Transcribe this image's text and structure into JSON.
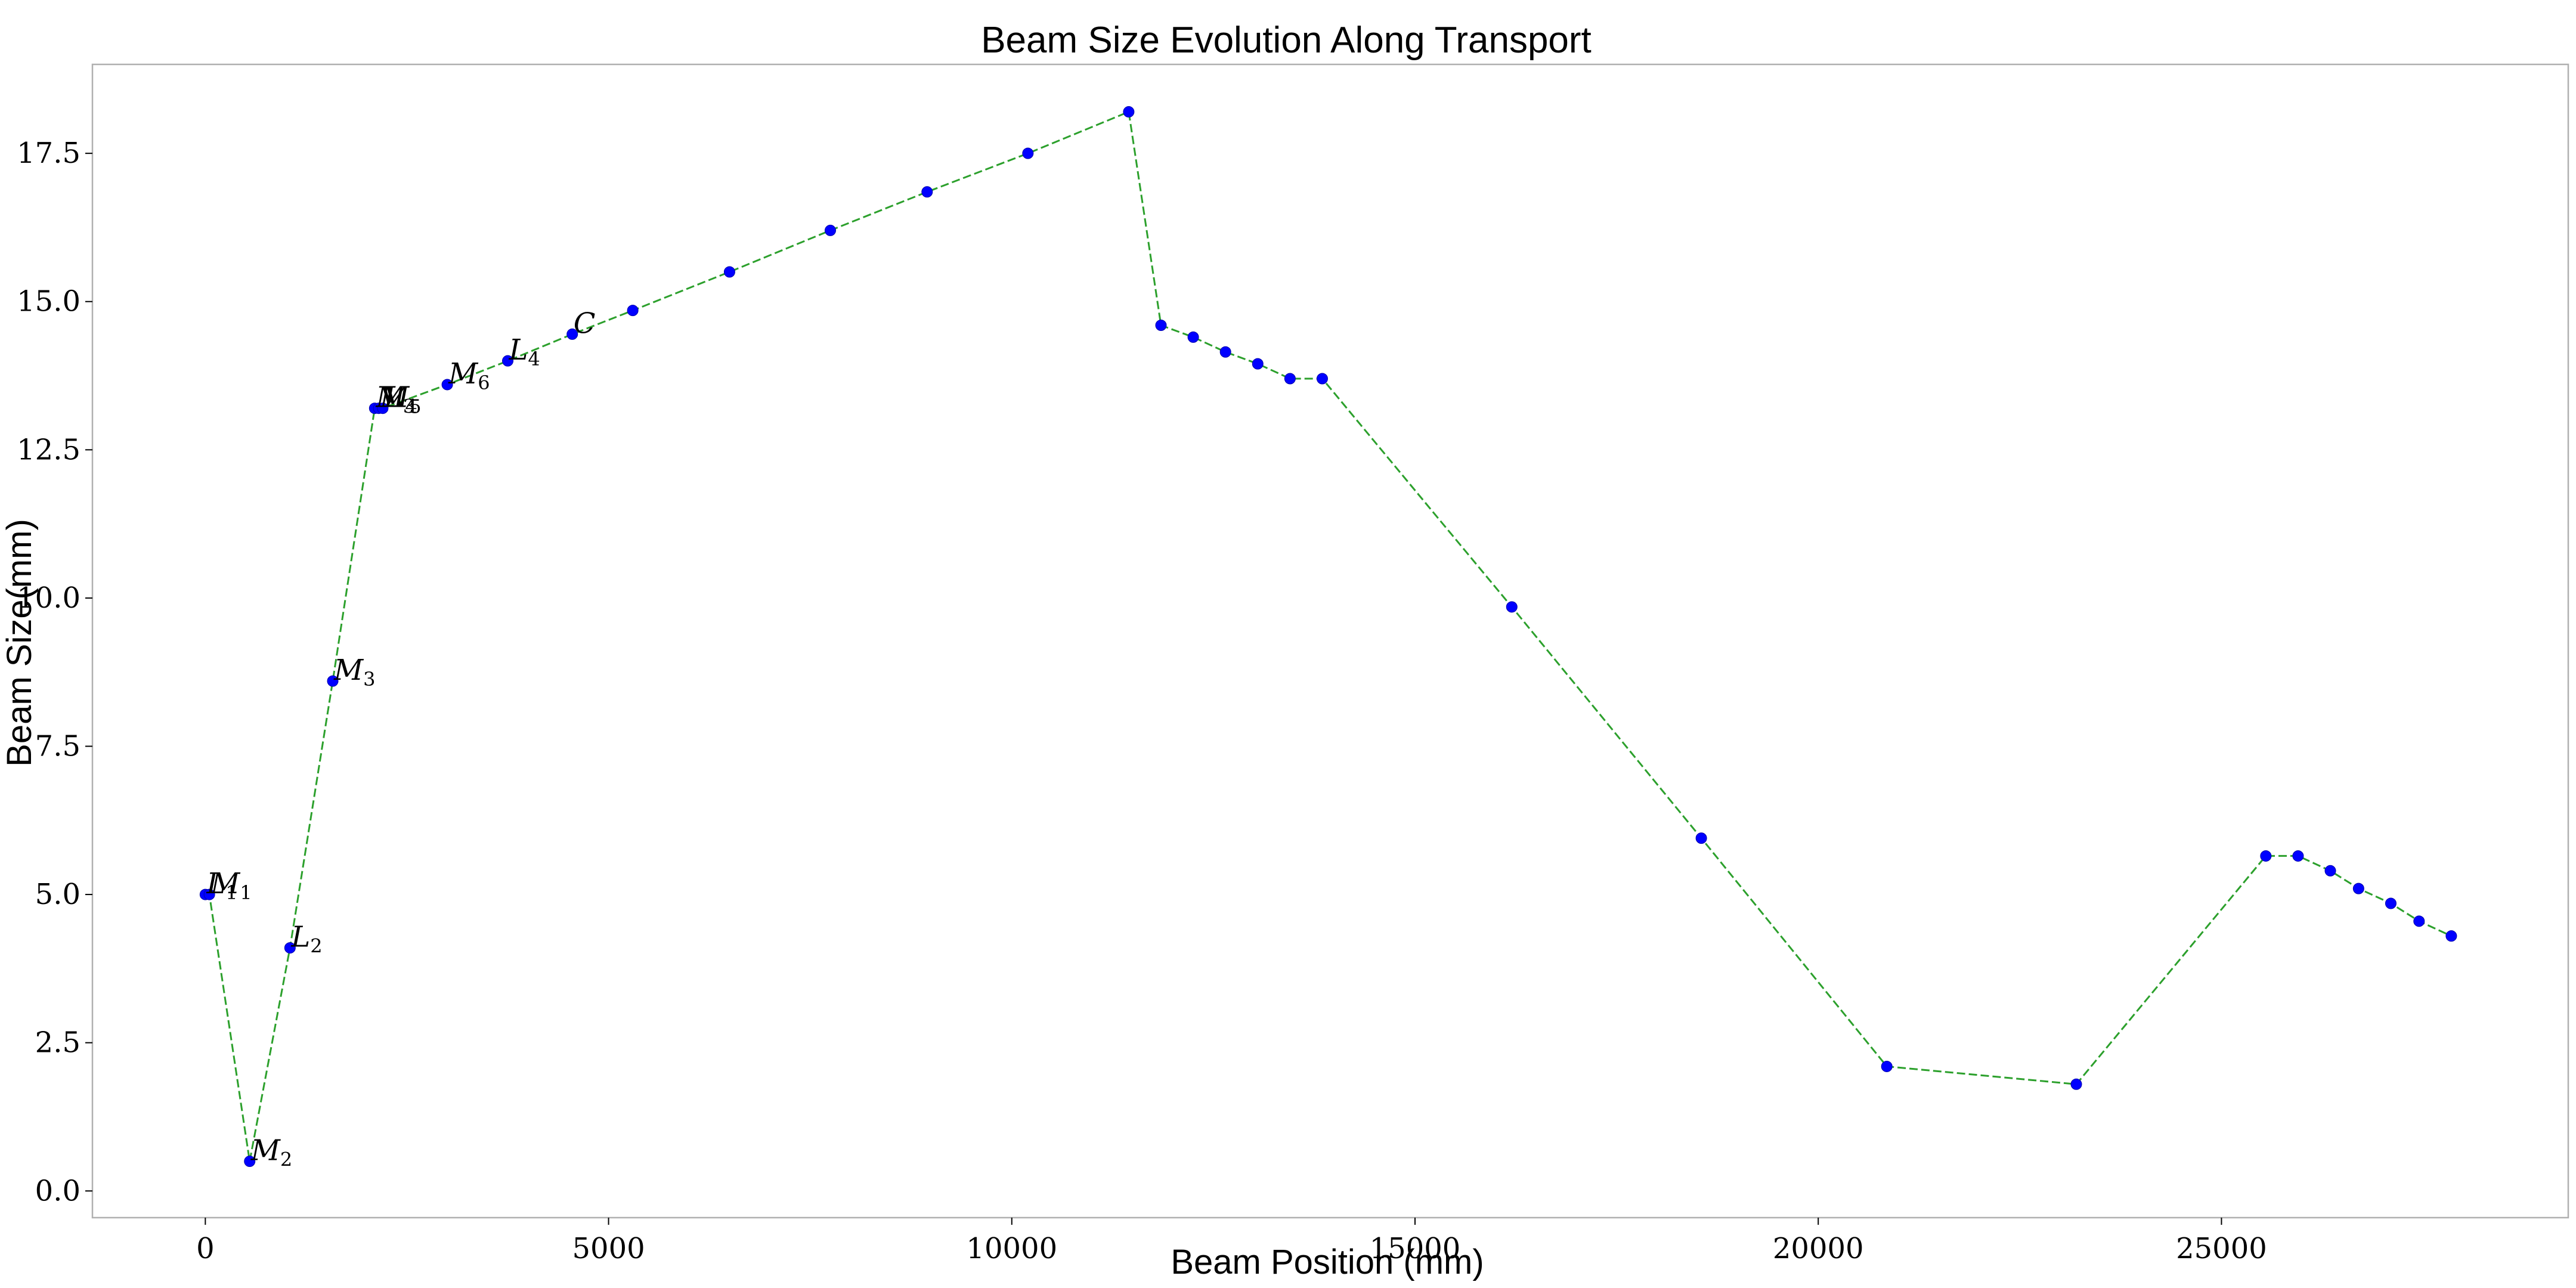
{
  "chart_data": {
    "type": "line",
    "title": "Beam Size Evolution Along Transport",
    "xlabel": "Beam Position (mm)",
    "ylabel": "Beam Size(mm)",
    "xlim": [
      -1400,
      29300
    ],
    "ylim": [
      -0.45,
      19.0
    ],
    "xticks": [
      0,
      5000,
      10000,
      15000,
      20000,
      25000
    ],
    "yticks": [
      0.0,
      2.5,
      5.0,
      7.5,
      10.0,
      12.5,
      15.0,
      17.5
    ],
    "xtick_labels": [
      "0",
      "5000",
      "10000",
      "15000",
      "20000",
      "25000"
    ],
    "ytick_labels": [
      "0.0",
      "2.5",
      "5.0",
      "7.5",
      "10.0",
      "12.5",
      "15.0",
      "17.5"
    ],
    "grid": false,
    "line_color": "#2ca02c",
    "line_style": "dashed",
    "marker_color": "#0000ff",
    "series": [
      {
        "x": [
          0,
          50,
          550,
          1050,
          1580,
          2100,
          2150,
          2200,
          3000,
          3750,
          4550,
          5300,
          6500,
          7750,
          8950,
          10200,
          11450,
          11850,
          12250,
          12650,
          13050,
          13450,
          13850,
          16200,
          18550,
          20850,
          23200,
          25550,
          25950,
          26350,
          26700,
          27100,
          27450,
          27850
        ],
        "y": [
          5.0,
          5.0,
          0.5,
          4.1,
          8.6,
          13.2,
          13.2,
          13.2,
          13.6,
          14.0,
          14.45,
          14.85,
          15.5,
          16.2,
          16.85,
          17.5,
          18.2,
          14.6,
          14.4,
          14.15,
          13.95,
          13.7,
          13.7,
          9.85,
          5.95,
          2.1,
          1.8,
          5.65,
          5.65,
          5.4,
          5.1,
          4.85,
          4.55,
          4.3
        ]
      }
    ],
    "annotations": [
      {
        "text": "L",
        "sub": "1",
        "x": 0,
        "y": 5.0
      },
      {
        "text": "M",
        "sub": "1",
        "x": 50,
        "y": 5.0
      },
      {
        "text": "M",
        "sub": "2",
        "x": 550,
        "y": 0.5
      },
      {
        "text": "L",
        "sub": "2",
        "x": 1050,
        "y": 4.1
      },
      {
        "text": "M",
        "sub": "3",
        "x": 1580,
        "y": 8.6
      },
      {
        "text": "M",
        "sub": "4",
        "x": 2100,
        "y": 13.2
      },
      {
        "text": "M",
        "sub": "5",
        "x": 2150,
        "y": 13.2
      },
      {
        "text": "L",
        "sub": "3",
        "x": 2200,
        "y": 13.2
      },
      {
        "text": "M",
        "sub": "6",
        "x": 3000,
        "y": 13.6
      },
      {
        "text": "L",
        "sub": "4",
        "x": 3750,
        "y": 14.0
      },
      {
        "text": "C",
        "sub": "",
        "x": 4550,
        "y": 14.45
      }
    ]
  }
}
